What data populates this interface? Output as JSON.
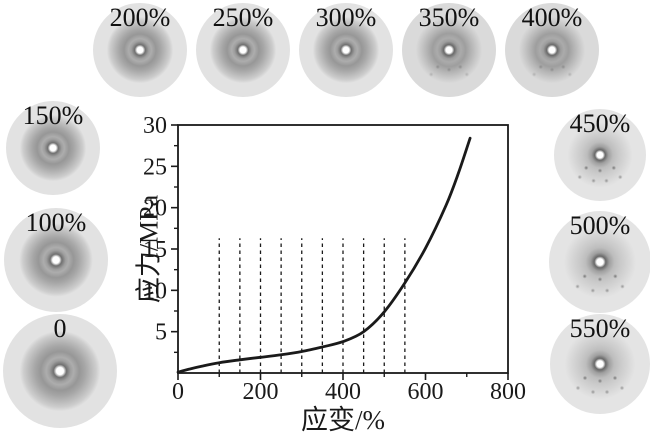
{
  "patterns": {
    "top": [
      {
        "label": "200%"
      },
      {
        "label": "250%"
      },
      {
        "label": "300%"
      },
      {
        "label": "350%"
      },
      {
        "label": "400%"
      }
    ],
    "left": [
      {
        "label": "150%"
      },
      {
        "label": "100%"
      },
      {
        "label": "0"
      }
    ],
    "right": [
      {
        "label": "450%"
      },
      {
        "label": "500%"
      },
      {
        "label": "550%"
      }
    ]
  },
  "chart_data": {
    "type": "line",
    "title": "",
    "xlabel": "应变/%",
    "ylabel": "应力/MPa",
    "xlim": [
      0,
      800
    ],
    "ylim": [
      0,
      30
    ],
    "grid": "off",
    "legend": "none",
    "x_major_ticks": [
      0,
      200,
      400,
      600,
      800
    ],
    "x_minor_ticks": [
      100,
      300,
      500,
      700
    ],
    "y_major_ticks": [
      5,
      10,
      15,
      20,
      25,
      30
    ],
    "y_minor_ticks": [
      2.5,
      7.5,
      12.5,
      17.5,
      22.5,
      27.5
    ],
    "dashed_guides": {
      "x_values": [
        100,
        150,
        200,
        250,
        300,
        350,
        400,
        450,
        500,
        550
      ],
      "y_top": 16.3
    },
    "series": [
      {
        "name": "stress-strain-curve",
        "x": [
          0,
          30,
          60,
          100,
          150,
          200,
          250,
          300,
          350,
          400,
          450,
          500,
          550,
          600,
          650,
          680,
          708
        ],
        "y": [
          0.1,
          0.5,
          0.85,
          1.25,
          1.6,
          1.9,
          2.2,
          2.6,
          3.15,
          3.8,
          5.0,
          7.4,
          10.9,
          15.1,
          20.3,
          24.2,
          28.4
        ]
      }
    ],
    "curve_color": "#1a1a1a",
    "axis_color": "#1a1a1a"
  }
}
